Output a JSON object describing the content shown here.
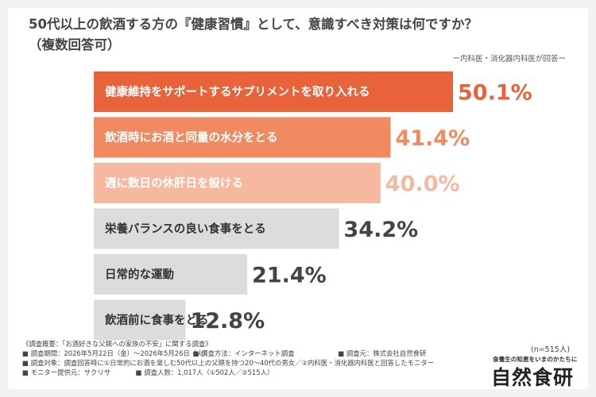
{
  "header": {
    "title": "50代以上の飲酒する方の『健康習慣』として、意識すべき対策は何ですか？",
    "subtitle": "（複数回答可）",
    "source": "ー内科医・消化器内科医が回答ー"
  },
  "chart_data": {
    "type": "bar",
    "orientation": "horizontal",
    "categories": [
      "健康維持をサポートするサプリメントを取り入れる",
      "飲酒時にお酒と同量の水分をとる",
      "週に数日の休肝日を設ける",
      "栄養バランスの良い食事をとる",
      "日常的な運動",
      "飲酒前に食事をとる"
    ],
    "values": [
      50.1,
      41.4,
      40.0,
      34.2,
      21.4,
      12.8
    ],
    "value_labels": [
      "50.1%",
      "41.4%",
      "40.0%",
      "34.2%",
      "21.4%",
      "12.8%"
    ],
    "colors": [
      "#e8623a",
      "#f08a60",
      "#f7b8a0",
      "#dcdcdc",
      "#dcdcdc",
      "#dcdcdc"
    ],
    "label_colors": [
      "#e8623a",
      "#f08a60",
      "#f7b8a0",
      "#444444",
      "#444444",
      "#444444"
    ],
    "text_colors": [
      "#ffffff",
      "#ffffff",
      "#ffffff",
      "#333333",
      "#333333",
      "#333333"
    ],
    "xlim": [
      0,
      50.1
    ]
  },
  "footer": {
    "lines": [
      [
        "《調査概要：「お酒好きな父親への家族の不安」に関する調査》"
      ],
      [
        "■ 調査期間：2026年5月22日（金）〜2026年5月26日（火）",
        "■ 調査方法：インターネット調査",
        "■ 調査元：株式会社自然食研"
      ],
      [
        "■ 調査対象：調査回答時に①日常的にお酒を楽しむ50代以上の父親を持つ20〜40代の男女／②内科医・消化器内科医と回答したモニター"
      ],
      [
        "■ モニター提供元：サクリサ",
        "■ 調査人数：1,017人（①502人／②515人）"
      ]
    ],
    "sample": "(n=515人)",
    "brand_tagline": "食養生の知恵をいまのかたちに",
    "brand_name": "自然食研"
  }
}
